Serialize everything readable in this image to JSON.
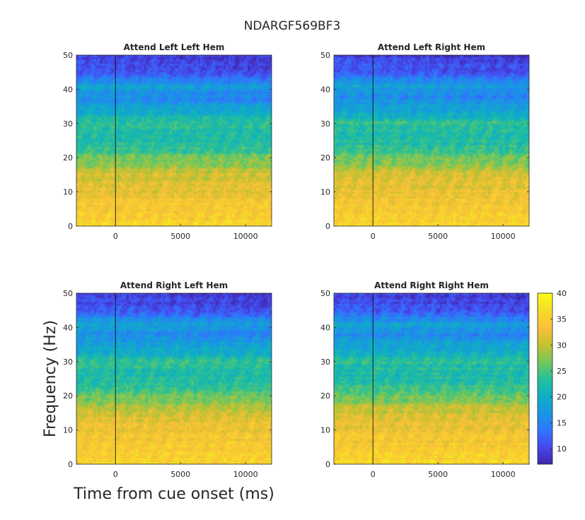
{
  "chart_data": {
    "type": "heatmap",
    "title": "NDARGF569BF3",
    "xlabel": "Time from cue onset (ms)",
    "ylabel": "Frequency (Hz)",
    "xlim": [
      -3000,
      12000
    ],
    "ylim": [
      0,
      50
    ],
    "xticks": [
      0,
      5000,
      10000
    ],
    "xtick_labels": [
      "0",
      "5000",
      "10000"
    ],
    "yticks": [
      0,
      10,
      20,
      30,
      40,
      50
    ],
    "ytick_labels": [
      "0",
      "10",
      "20",
      "30",
      "40",
      "50"
    ],
    "event_line_x": 0,
    "colormap": "parula",
    "colorbar": {
      "clim": [
        7,
        40
      ],
      "ticks": [
        10,
        15,
        20,
        25,
        30,
        35,
        40
      ],
      "tick_labels": [
        "10",
        "15",
        "20",
        "25",
        "30",
        "35",
        "40"
      ]
    },
    "frequency_profile": {
      "frequency_hz": [
        0,
        3,
        6,
        9,
        12,
        15,
        18,
        21,
        24,
        27,
        30,
        32,
        35,
        38,
        41,
        44,
        47,
        50
      ],
      "approx_power": [
        36,
        35,
        34,
        33,
        32,
        31,
        28,
        25,
        23,
        22,
        24,
        21,
        18,
        16,
        19,
        13,
        11,
        10
      ]
    },
    "panels": [
      {
        "title": "Attend Left Left Hem"
      },
      {
        "title": "Attend Left Right Hem"
      },
      {
        "title": "Attend Right Left Hem"
      },
      {
        "title": "Attend Right Right Hem"
      }
    ]
  }
}
